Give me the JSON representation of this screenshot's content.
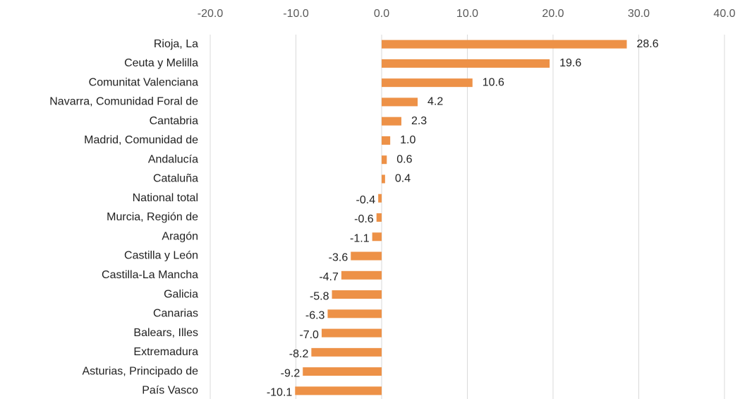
{
  "chart_data": {
    "type": "barh",
    "categories": [
      "Rioja, La",
      "Ceuta y Melilla",
      "Comunitat Valenciana",
      "Navarra, Comunidad Foral de",
      "Cantabria",
      "Madrid, Comunidad de",
      "Andalucía",
      "Cataluña",
      "National total",
      "Murcia, Región de",
      "Aragón",
      "Castilla y León",
      "Castilla-La Mancha",
      "Galicia",
      "Canarias",
      "Balears, Illes",
      "Extremadura",
      "Asturias, Principado de",
      "País Vasco"
    ],
    "values": [
      28.6,
      19.6,
      10.6,
      4.2,
      2.3,
      1.0,
      0.6,
      0.4,
      -0.4,
      -0.6,
      -1.1,
      -3.6,
      -4.7,
      -5.8,
      -6.3,
      -7.0,
      -8.2,
      -9.2,
      -10.1
    ],
    "value_labels": [
      "28.6",
      "19.6",
      "10.6",
      "4.2",
      "2.3",
      "1.0",
      "0.6",
      "0.4",
      "-0.4",
      "-0.6",
      "-1.1",
      "-3.6",
      "-4.7",
      "-5.8",
      "-6.3",
      "-7.0",
      "-8.2",
      "-9.2",
      "-10.1"
    ],
    "color": "#ed9147",
    "xlim": [
      -20,
      40
    ],
    "xticks": [
      {
        "value": -20,
        "label": "-20.0"
      },
      {
        "value": -10,
        "label": "-10.0"
      },
      {
        "value": 0,
        "label": "0.0"
      },
      {
        "value": 10,
        "label": "10.0"
      },
      {
        "value": 20,
        "label": "20.0"
      },
      {
        "value": 30,
        "label": "30.0"
      },
      {
        "value": 40,
        "label": "40.0"
      }
    ],
    "grid": true
  }
}
